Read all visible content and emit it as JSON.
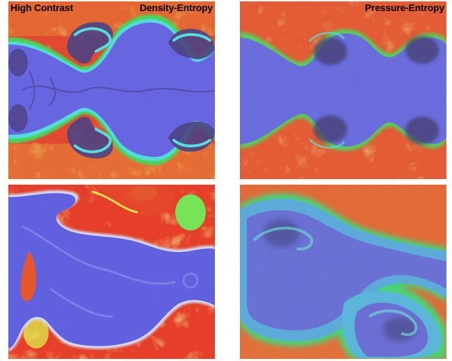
{
  "panels": {
    "top_left": {
      "label_left": "High Contrast",
      "label_right": "Density-Entropy"
    },
    "top_right": {
      "label_right": "Pressure-Entropy"
    }
  },
  "colors": {
    "hot": "#e82a10",
    "warm": "#f27a18",
    "yellow": "#e6ea3c",
    "green": "#3ee24a",
    "cyan": "#3fe6dc",
    "blue": "#5a5ae6",
    "purple": "#4a3cc8",
    "dark": "#2a2440"
  }
}
